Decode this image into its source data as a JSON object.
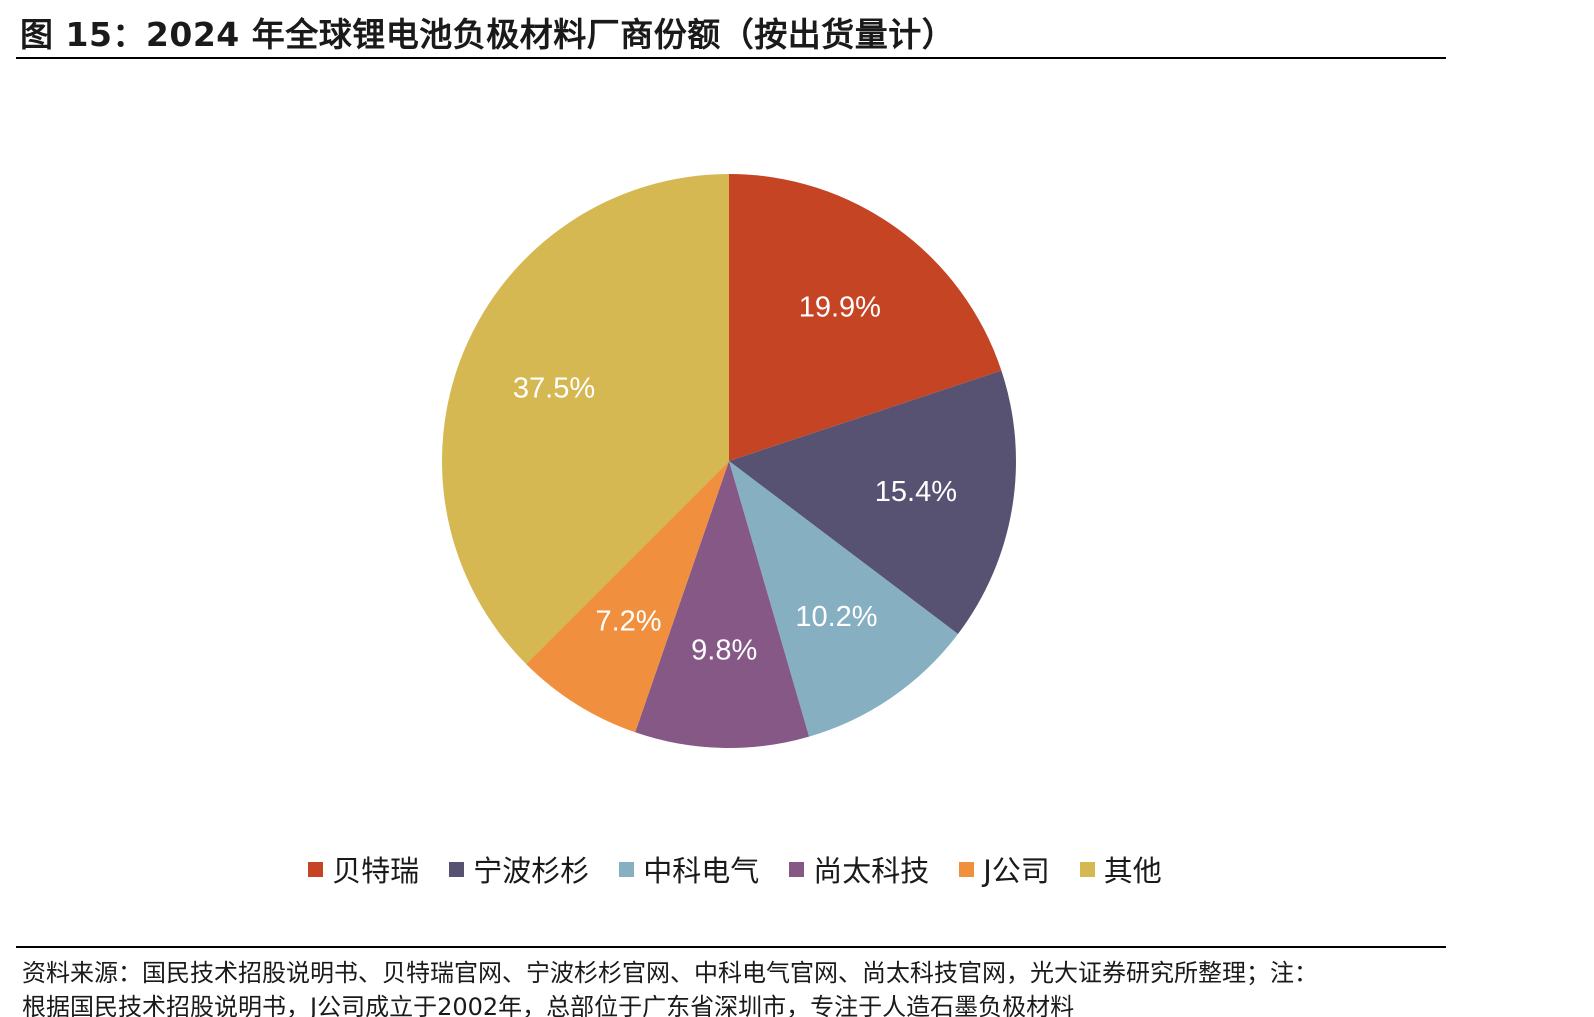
{
  "figure_title": "图 15：2024 年全球锂电池负极材料厂商份额（按出货量计）",
  "chart_data": {
    "type": "pie",
    "title": "",
    "start_angle_deg": 0,
    "direction": "clockwise",
    "slices": [
      {
        "name": "贝特瑞",
        "value": 19.9,
        "label": "19.9%",
        "color": "#C44424"
      },
      {
        "name": "宁波杉杉",
        "value": 15.4,
        "label": "15.4%",
        "color": "#575272"
      },
      {
        "name": "中科电气",
        "value": 10.2,
        "label": "10.2%",
        "color": "#86AFC2"
      },
      {
        "name": "尚太科技",
        "value": 9.8,
        "label": "9.8%",
        "color": "#855886"
      },
      {
        "name": "J公司",
        "value": 7.2,
        "label": "7.2%",
        "color": "#F08F3D"
      },
      {
        "name": "其他",
        "value": 37.5,
        "label": "37.5%",
        "color": "#D6B852"
      }
    ],
    "legend_position": "bottom"
  },
  "source": {
    "line1": "资料来源：国民技术招股说明书、贝特瑞官网、宁波杉杉官网、中科电气官网、尚太科技官网，光大证券研究所整理；注：",
    "line2": "根据国民技术招股说明书，J公司成立于2002年，总部位于广东省深圳市，专注于人造石墨负极材料"
  }
}
